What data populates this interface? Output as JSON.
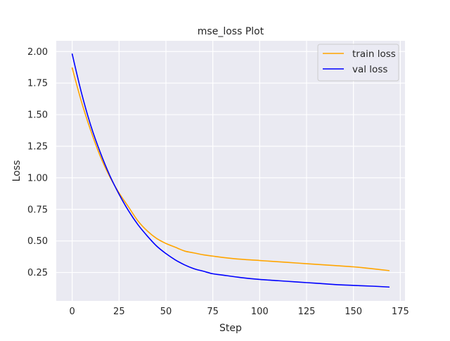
{
  "chart_data": {
    "type": "line",
    "title": "mse_loss Plot",
    "xlabel": "Step",
    "ylabel": "Loss",
    "xlim": [
      -8.5,
      177.5
    ],
    "ylim": [
      0.025,
      2.085
    ],
    "xticks": [
      0,
      25,
      50,
      75,
      100,
      125,
      150,
      175
    ],
    "yticks": [
      0.25,
      0.5,
      0.75,
      1.0,
      1.25,
      1.5,
      1.75,
      2.0
    ],
    "xtick_labels": [
      "0",
      "25",
      "50",
      "75",
      "100",
      "125",
      "150",
      "175"
    ],
    "ytick_labels": [
      "0.25",
      "0.50",
      "0.75",
      "1.00",
      "1.25",
      "1.50",
      "1.75",
      "2.00"
    ],
    "grid": true,
    "legend_position": "top-right",
    "background_color": "#eaeaf2",
    "grid_color": "#ffffff",
    "series": [
      {
        "name": "train loss",
        "color": "#ffa500",
        "x": [
          0,
          5,
          10,
          15,
          20,
          25,
          30,
          35,
          40,
          45,
          50,
          55,
          60,
          65,
          70,
          75,
          80,
          90,
          100,
          110,
          120,
          130,
          140,
          150,
          160,
          169
        ],
        "y": [
          1.87,
          1.6,
          1.37,
          1.17,
          1.01,
          0.88,
          0.77,
          0.66,
          0.58,
          0.52,
          0.48,
          0.45,
          0.42,
          0.405,
          0.39,
          0.38,
          0.37,
          0.355,
          0.345,
          0.335,
          0.325,
          0.315,
          0.305,
          0.295,
          0.28,
          0.265
        ]
      },
      {
        "name": "val loss",
        "color": "#0000ff",
        "x": [
          0,
          5,
          10,
          15,
          20,
          25,
          30,
          35,
          40,
          45,
          50,
          55,
          60,
          65,
          70,
          75,
          80,
          90,
          100,
          110,
          120,
          130,
          140,
          150,
          160,
          169
        ],
        "y": [
          1.98,
          1.67,
          1.41,
          1.2,
          1.02,
          0.87,
          0.74,
          0.63,
          0.54,
          0.46,
          0.4,
          0.35,
          0.31,
          0.28,
          0.26,
          0.24,
          0.23,
          0.21,
          0.195,
          0.185,
          0.175,
          0.165,
          0.155,
          0.148,
          0.142,
          0.135
        ]
      }
    ]
  }
}
